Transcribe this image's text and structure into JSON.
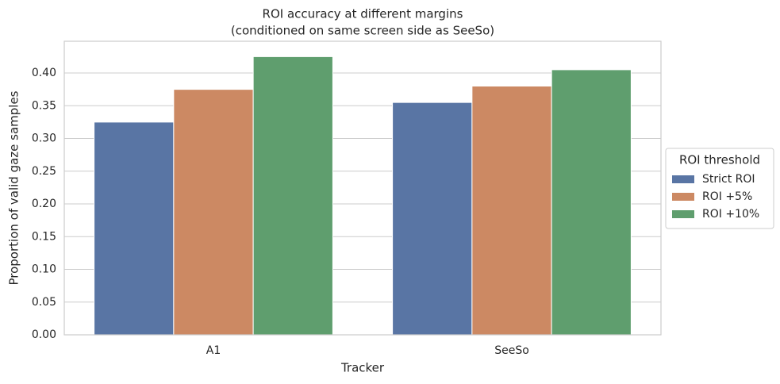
{
  "chart_data": {
    "type": "bar",
    "title": "ROI accuracy at different margins",
    "subtitle": "(conditioned on same screen side as SeeSo)",
    "x_label": "Tracker",
    "y_label": "Proportion of valid gaze samples",
    "categories": [
      "A1",
      "SeeSo"
    ],
    "series": [
      {
        "name": "Strict ROI",
        "color": "#5975a4",
        "values": [
          0.325,
          0.355
        ]
      },
      {
        "name": "ROI +5%",
        "color": "#cc8963",
        "values": [
          0.375,
          0.38
        ]
      },
      {
        "name": "ROI +10%",
        "color": "#5f9e6e",
        "values": [
          0.425,
          0.405
        ]
      }
    ],
    "legend_title": "ROI threshold",
    "legend_position": "right",
    "ylim": [
      0,
      0.4485
    ],
    "yticks": [
      {
        "value": 0,
        "label": "0.00"
      },
      {
        "value": 0.05,
        "label": "0.05"
      },
      {
        "value": 0.1,
        "label": "0.10"
      },
      {
        "value": 0.15,
        "label": "0.15"
      },
      {
        "value": 0.2,
        "label": "0.20"
      },
      {
        "value": 0.25,
        "label": "0.25"
      },
      {
        "value": 0.3,
        "label": "0.30"
      },
      {
        "value": 0.35,
        "label": "0.35"
      },
      {
        "value": 0.4,
        "label": "0.40"
      }
    ],
    "grid": true
  }
}
